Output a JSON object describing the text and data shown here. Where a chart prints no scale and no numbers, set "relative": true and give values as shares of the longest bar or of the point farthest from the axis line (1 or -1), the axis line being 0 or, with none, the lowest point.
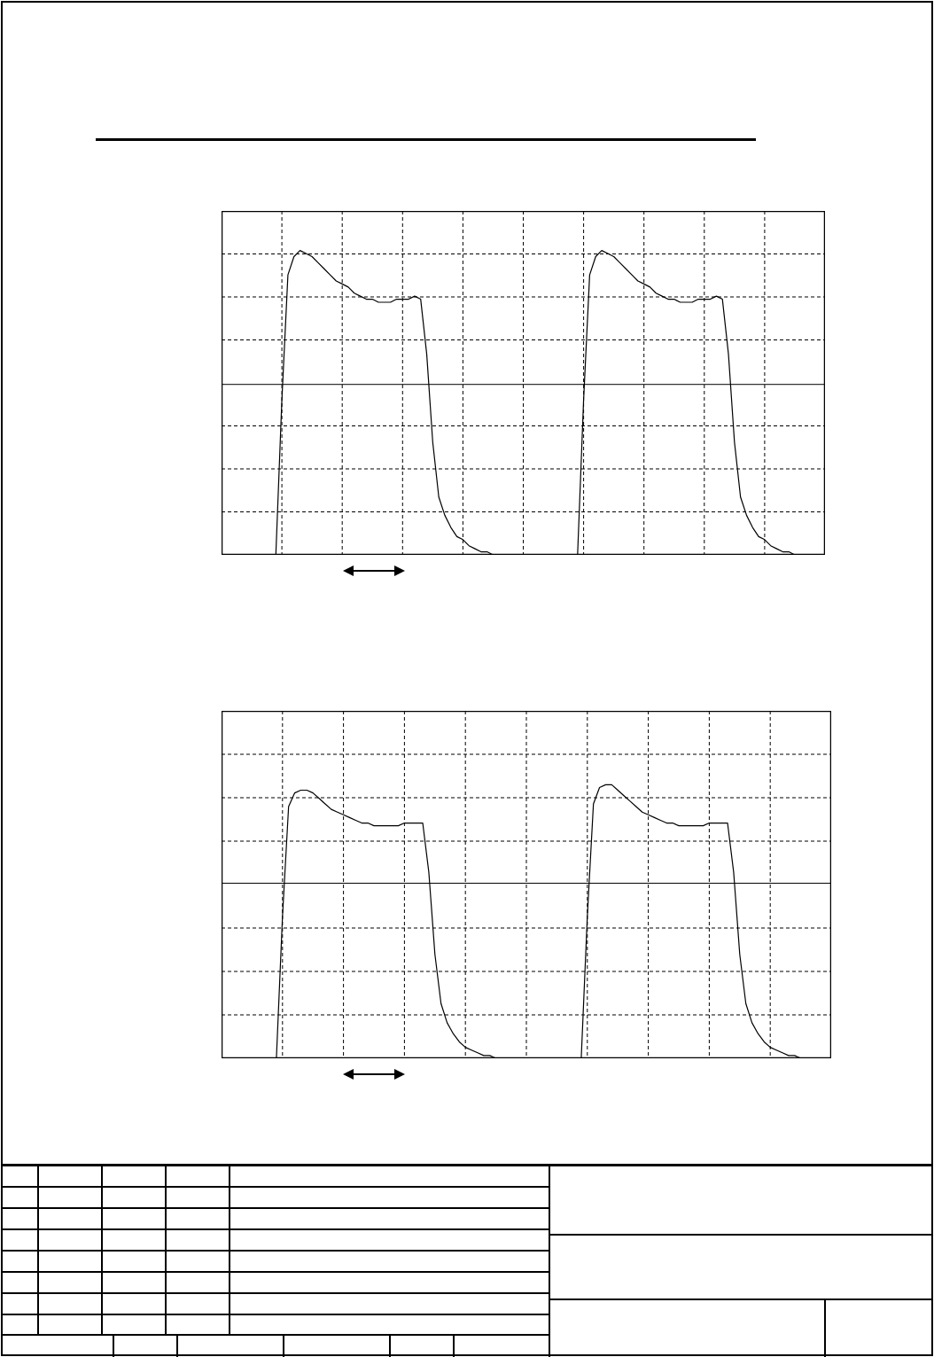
{
  "chart_data": [
    {
      "type": "line",
      "relative": true,
      "grid": true,
      "tick_labels": false,
      "marker": "none",
      "categories": [
        null,
        null,
        null,
        null,
        null,
        null,
        null,
        null,
        null,
        null,
        null,
        null,
        null,
        null,
        null,
        null,
        null,
        null,
        null,
        null,
        null,
        null,
        null,
        null,
        null,
        null,
        null,
        null,
        null,
        null,
        null,
        null,
        null,
        null,
        null,
        null,
        null,
        null,
        null,
        null,
        null,
        null,
        null,
        null,
        null,
        null,
        null,
        null,
        null,
        null,
        null,
        null,
        null,
        null,
        null,
        null,
        null,
        null,
        null,
        null,
        null,
        null,
        null,
        null,
        null,
        null,
        null,
        null,
        null,
        null,
        null,
        null,
        null,
        null,
        null,
        null,
        null,
        null,
        null,
        null,
        null,
        null,
        null,
        null,
        null,
        null,
        null,
        null,
        null,
        null,
        null,
        null,
        null,
        null,
        null,
        null,
        null,
        null,
        null,
        null,
        null
      ],
      "series": [
        {
          "color": "#000000",
          "values": [
            0,
            0,
            0,
            0,
            0,
            0,
            0,
            0,
            0,
            0,
            0.51,
            0.92,
            0.98,
            1,
            0.99,
            0.98,
            0.96,
            0.94,
            0.92,
            0.9,
            0.89,
            0.88,
            0.86,
            0.85,
            0.84,
            0.84,
            0.83,
            0.83,
            0.83,
            0.84,
            0.84,
            0.84,
            0.85,
            0.84,
            0.66,
            0.37,
            0.19,
            0.13,
            0.09,
            0.06,
            0.05,
            0.03,
            0.02,
            0.01,
            0.01,
            0,
            0,
            0,
            0,
            0,
            0,
            0,
            0,
            0,
            0,
            0,
            0,
            0,
            0,
            0,
            0.51,
            0.92,
            0.98,
            1,
            0.99,
            0.98,
            0.96,
            0.94,
            0.92,
            0.9,
            0.89,
            0.88,
            0.86,
            0.85,
            0.84,
            0.84,
            0.83,
            0.83,
            0.83,
            0.84,
            0.84,
            0.84,
            0.85,
            0.84,
            0.66,
            0.37,
            0.19,
            0.13,
            0.09,
            0.06,
            0.05,
            0.03,
            0.02,
            0.01,
            0.01,
            0,
            0,
            0,
            0,
            0,
            0
          ]
        }
      ],
      "ref_lines": [
        {
          "axis": "y",
          "value": 0.56,
          "color": "#000000",
          "line_style": "solid"
        }
      ]
    },
    {
      "type": "line",
      "relative": true,
      "grid": true,
      "tick_labels": false,
      "marker": "none",
      "categories": [
        null,
        null,
        null,
        null,
        null,
        null,
        null,
        null,
        null,
        null,
        null,
        null,
        null,
        null,
        null,
        null,
        null,
        null,
        null,
        null,
        null,
        null,
        null,
        null,
        null,
        null,
        null,
        null,
        null,
        null,
        null,
        null,
        null,
        null,
        null,
        null,
        null,
        null,
        null,
        null,
        null,
        null,
        null,
        null,
        null,
        null,
        null,
        null,
        null,
        null,
        null,
        null,
        null,
        null,
        null,
        null,
        null,
        null,
        null,
        null,
        null,
        null,
        null,
        null,
        null,
        null,
        null,
        null,
        null,
        null,
        null,
        null,
        null,
        null,
        null,
        null,
        null,
        null,
        null,
        null,
        null,
        null,
        null,
        null,
        null,
        null,
        null,
        null,
        null,
        null,
        null,
        null,
        null,
        null,
        null,
        null,
        null,
        null,
        null,
        null,
        null
      ],
      "series": [
        {
          "color": "#000000",
          "values": [
            0,
            0,
            0,
            0,
            0,
            0,
            0,
            0,
            0,
            0,
            0.52,
            0.92,
            0.97,
            0.98,
            0.98,
            0.97,
            0.95,
            0.93,
            0.91,
            0.9,
            0.89,
            0.88,
            0.87,
            0.86,
            0.86,
            0.85,
            0.85,
            0.85,
            0.85,
            0.85,
            0.86,
            0.86,
            0.86,
            0.86,
            0.68,
            0.38,
            0.2,
            0.13,
            0.09,
            0.06,
            0.04,
            0.03,
            0.02,
            0.01,
            0.01,
            0,
            0,
            0,
            0,
            0,
            0,
            0,
            0,
            0,
            0,
            0,
            0,
            0,
            0,
            0,
            0.52,
            0.93,
            0.99,
            1,
            1,
            0.98,
            0.96,
            0.94,
            0.92,
            0.9,
            0.89,
            0.88,
            0.87,
            0.86,
            0.86,
            0.85,
            0.85,
            0.85,
            0.85,
            0.85,
            0.86,
            0.86,
            0.86,
            0.86,
            0.68,
            0.38,
            0.2,
            0.13,
            0.09,
            0.06,
            0.04,
            0.03,
            0.02,
            0.01,
            0.01,
            0,
            0,
            0,
            0,
            0,
            0
          ]
        }
      ],
      "ref_lines": [
        {
          "axis": "y",
          "value": 0.64,
          "color": "#000000",
          "line_style": "solid"
        }
      ]
    }
  ]
}
